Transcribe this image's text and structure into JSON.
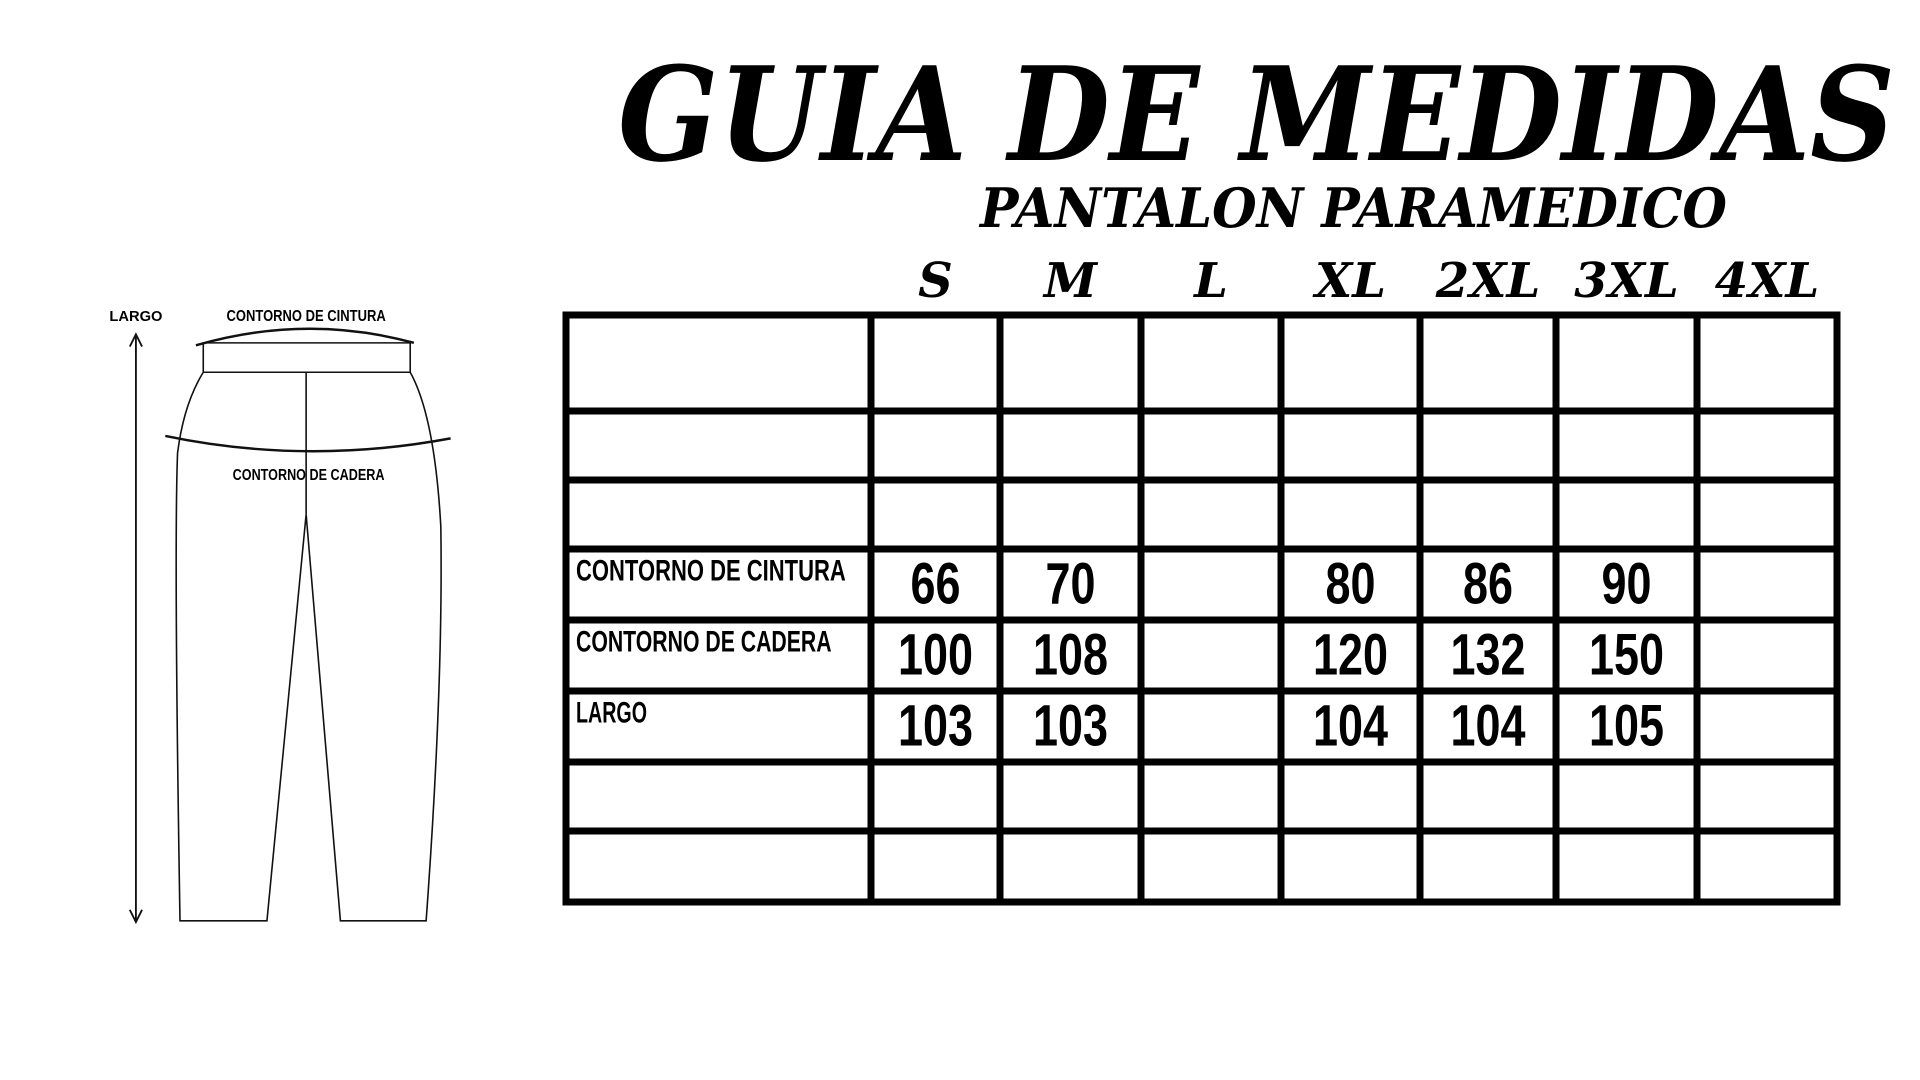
{
  "header": {
    "title": "GUIA DE MEDIDAS",
    "subtitle": "PANTALON PARAMEDICO"
  },
  "diagram": {
    "length_label": "LARGO",
    "waist_label": "CONTORNO DE CINTURA",
    "hip_label": "CONTORNO DE CADERA"
  },
  "table": {
    "sizes": [
      "S",
      "M",
      "L",
      "XL",
      "2XL",
      "3XL",
      "4XL"
    ],
    "rows": [
      {
        "label": "CONTORNO DE CINTURA",
        "values": [
          66,
          70,
          null,
          80,
          86,
          90,
          null
        ]
      },
      {
        "label": "CONTORNO DE CADERA",
        "values": [
          100,
          108,
          null,
          120,
          132,
          150,
          null
        ]
      },
      {
        "label": "LARGO",
        "values": [
          103,
          103,
          null,
          104,
          104,
          105,
          null
        ]
      }
    ]
  }
}
